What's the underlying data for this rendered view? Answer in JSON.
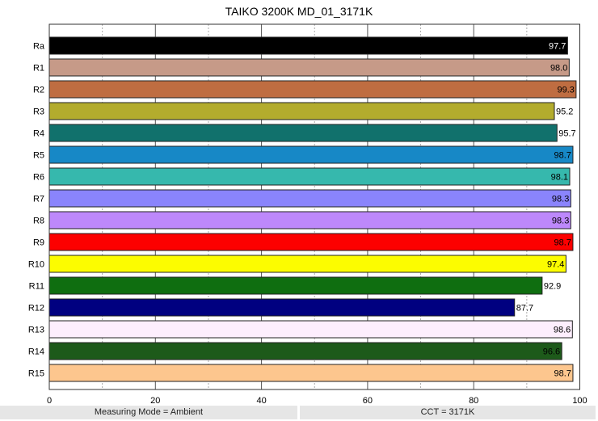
{
  "chart_data": {
    "type": "bar",
    "orientation": "horizontal",
    "title": "TAIKO 3200K MD_01_3171K",
    "xlabel": "",
    "ylabel": "",
    "xlim": [
      0,
      100
    ],
    "xticks": [
      0,
      20,
      40,
      60,
      80,
      100
    ],
    "grid": true,
    "categories": [
      "Ra",
      "R1",
      "R2",
      "R3",
      "R4",
      "R5",
      "R6",
      "R7",
      "R8",
      "R9",
      "R10",
      "R11",
      "R12",
      "R13",
      "R14",
      "R15"
    ],
    "values": [
      97.7,
      98.0,
      99.3,
      95.2,
      95.7,
      98.7,
      98.1,
      98.3,
      98.3,
      98.7,
      97.4,
      92.9,
      87.7,
      98.6,
      96.6,
      98.7
    ],
    "labels": [
      "97.7",
      "98.0",
      "99.3",
      "95.2",
      "95.7",
      "98.7",
      "98.1",
      "98.3",
      "98.3",
      "98.7",
      "97.4",
      "92.9",
      "87.7",
      "98.6",
      "96.6",
      "98.7"
    ],
    "colors": [
      "#000000",
      "#c69a88",
      "#bf6d41",
      "#b3ac2d",
      "#11716c",
      "#1788c6",
      "#36b8ad",
      "#8a84fc",
      "#bd88fb",
      "#fc0000",
      "#fcfc00",
      "#0f6e10",
      "#000080",
      "#fdeefd",
      "#1d5a1a",
      "#fdc68e"
    ]
  },
  "footer": {
    "measuring_mode": "Measuring Mode = Ambient",
    "cct": "CCT = 3171K"
  }
}
